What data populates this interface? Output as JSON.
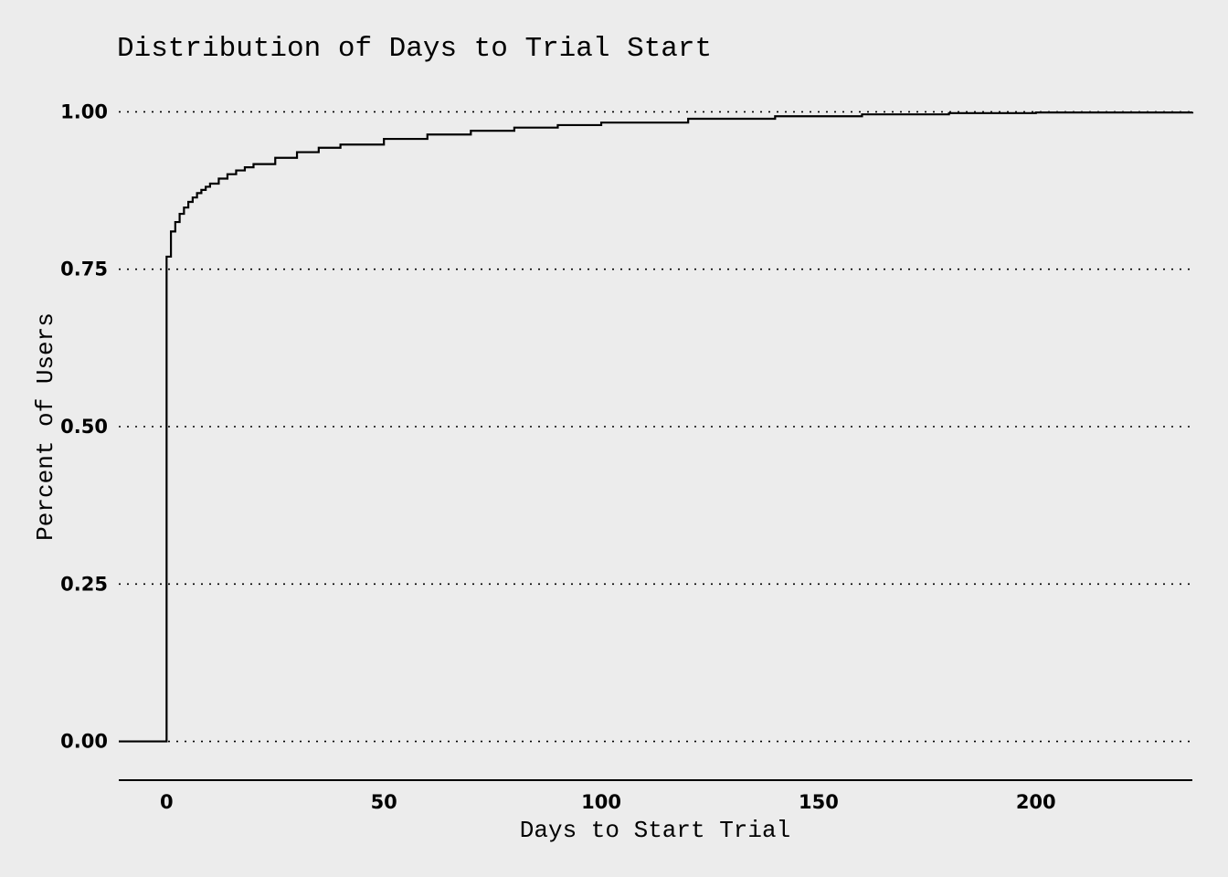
{
  "chart_data": {
    "type": "line",
    "step": true,
    "title": "Distribution of Days to Trial Start",
    "xlabel": "Days to Start Trial",
    "ylabel": "Percent of Users",
    "xlim": [
      -11,
      236
    ],
    "ylim": [
      -0.05,
      1.05
    ],
    "x_ticks": [
      0,
      50,
      100,
      150,
      200
    ],
    "x_tick_labels": [
      "0",
      "50",
      "100",
      "150",
      "200"
    ],
    "y_ticks": [
      0,
      0.25,
      0.5,
      0.75,
      1
    ],
    "y_tick_labels": [
      "0.00",
      "0.25",
      "0.50",
      "0.75",
      "1.00"
    ],
    "grid": "horizontal-dotted",
    "series": [
      {
        "x": [
          -11,
          0,
          1,
          2,
          3,
          4,
          5,
          6,
          7,
          8,
          9,
          10,
          12,
          14,
          16,
          18,
          20,
          25,
          30,
          35,
          40,
          50,
          60,
          70,
          80,
          90,
          100,
          120,
          140,
          160,
          180,
          200,
          236
        ],
        "y": [
          0,
          0.77,
          0.81,
          0.825,
          0.838,
          0.848,
          0.857,
          0.864,
          0.871,
          0.876,
          0.881,
          0.886,
          0.894,
          0.901,
          0.907,
          0.912,
          0.917,
          0.927,
          0.936,
          0.943,
          0.948,
          0.957,
          0.964,
          0.97,
          0.975,
          0.979,
          0.983,
          0.989,
          0.993,
          0.996,
          0.998,
          0.999,
          1
        ]
      }
    ]
  }
}
